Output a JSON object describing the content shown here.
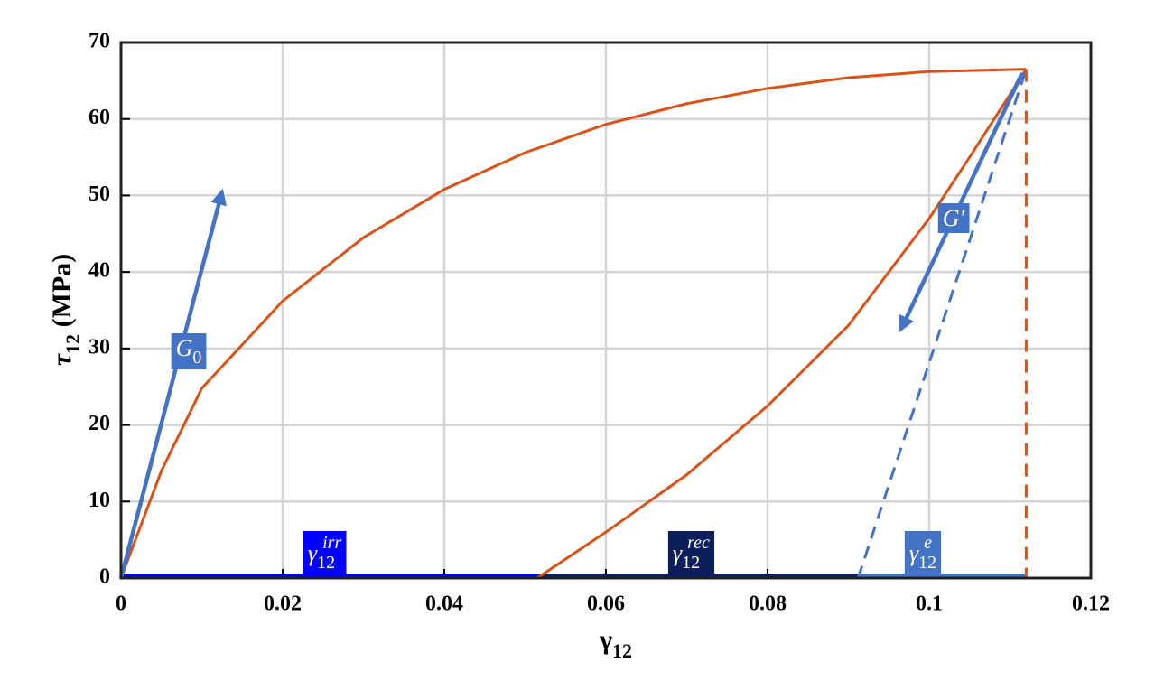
{
  "chart_data": {
    "type": "line",
    "x_label": {
      "base": "γ",
      "sub": "12"
    },
    "y_label": {
      "base": "τ",
      "sub": "12",
      "rest": " (MPa)"
    },
    "xlim": [
      0,
      0.12
    ],
    "ylim": [
      0,
      70
    ],
    "xticks": [
      0,
      0.02,
      0.04,
      0.06,
      0.08,
      0.1,
      0.12
    ],
    "yticks": [
      0,
      10,
      20,
      30,
      40,
      50,
      60,
      70
    ],
    "grid": true,
    "series": [
      {
        "color": "#d95319",
        "dash": false,
        "arrow": false,
        "x": [
          0,
          0.005,
          0.01,
          0.02,
          0.03,
          0.04,
          0.05,
          0.06,
          0.07,
          0.08,
          0.09,
          0.1,
          0.112
        ],
        "values": [
          0,
          14,
          24.8,
          36.2,
          44.5,
          50.8,
          55.6,
          59.3,
          62,
          64,
          65.4,
          66.2,
          66.5
        ]
      },
      {
        "color": "#d95319",
        "dash": false,
        "arrow": false,
        "x": [
          0.0515,
          0.06,
          0.07,
          0.08,
          0.09,
          0.1,
          0.105,
          0.112
        ],
        "values": [
          0,
          6,
          13.5,
          22.5,
          33,
          47,
          55,
          66.5
        ]
      },
      {
        "color": "#4472c4",
        "dash": true,
        "arrow": false,
        "x": [
          0.0912,
          0.112
        ],
        "values": [
          0,
          66.5
        ]
      },
      {
        "color": "#d95319",
        "dash": true,
        "arrow": false,
        "x": [
          0.112,
          0.112
        ],
        "values": [
          66.5,
          0
        ]
      },
      {
        "color": "#4472c4",
        "dash": false,
        "arrow": true,
        "x": [
          0,
          0.0125
        ],
        "values": [
          0,
          50.5
        ]
      },
      {
        "color": "#4472c4",
        "dash": false,
        "arrow": true,
        "x": [
          0.1115,
          0.0965
        ],
        "values": [
          66,
          32.5
        ]
      }
    ],
    "bands": [
      {
        "x": [
          0,
          0.0515
        ],
        "color": "#0000ff"
      },
      {
        "x": [
          0.0515,
          0.0912
        ],
        "color": "#0a1f5c"
      },
      {
        "x": [
          0.0912,
          0.112
        ],
        "color": "#4472c4"
      }
    ],
    "annotations": [
      {
        "base": "G",
        "sub": "0",
        "color": "#4472c4"
      },
      {
        "base": "G′",
        "color": "#4472c4"
      },
      {
        "base": "γ",
        "sub": "12",
        "sup": "irr",
        "color": "#0000ff"
      },
      {
        "base": "γ",
        "sub": "12",
        "sup": "rec",
        "color": "#0a1f5c"
      },
      {
        "base": "γ",
        "sub": "12",
        "sup": "e",
        "color": "#4472c4"
      }
    ]
  }
}
